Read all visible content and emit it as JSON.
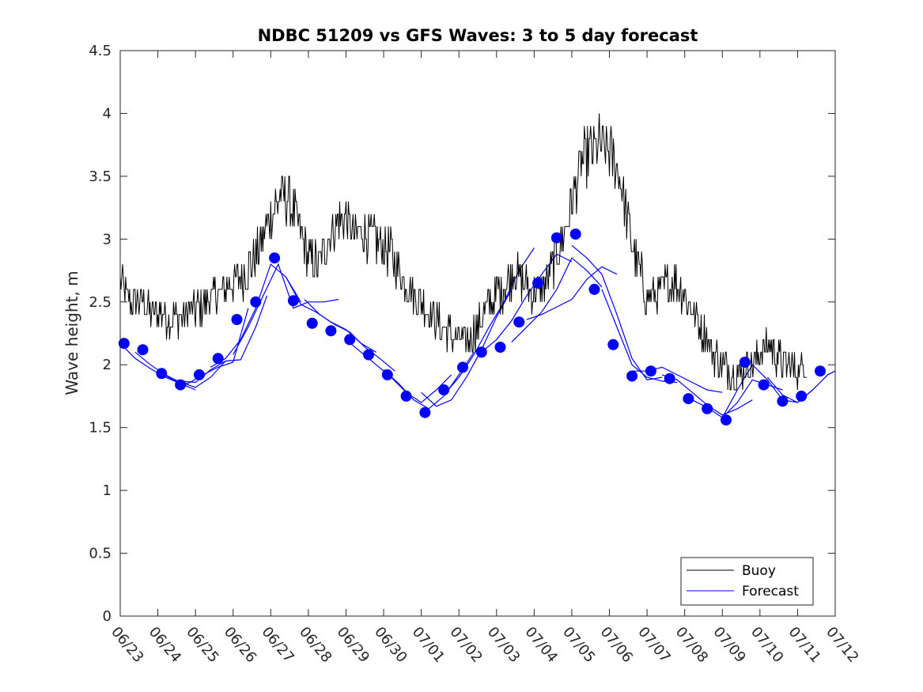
{
  "chart_data": {
    "type": "line",
    "title": "NDBC 51209 vs GFS Waves: 3 to 5 day forecast",
    "xlabel": "",
    "ylabel": "Wave height, m",
    "xlim": [
      0,
      19
    ],
    "ylim": [
      0,
      4.5
    ],
    "x_tick_labels": [
      "06/23",
      "06/24",
      "06/25",
      "06/26",
      "06/27",
      "06/28",
      "06/29",
      "06/30",
      "07/01",
      "07/02",
      "07/03",
      "07/04",
      "07/05",
      "07/06",
      "07/07",
      "07/08",
      "07/09",
      "07/10",
      "07/11",
      "07/12"
    ],
    "y_tick_labels": [
      "0",
      "0.5",
      "1",
      "1.5",
      "2",
      "2.5",
      "3",
      "3.5",
      "4",
      "4.5"
    ],
    "grid": false,
    "legend_position": "bottom-right",
    "x_units_note": "days after 06/23",
    "series": [
      {
        "name": "Buoy",
        "color": "#000000",
        "line_style": "solid",
        "x": [
          0,
          0.25,
          0.5,
          0.75,
          1,
          1.25,
          1.5,
          1.75,
          2,
          2.25,
          2.5,
          2.75,
          3,
          3.25,
          3.5,
          3.75,
          4,
          4.25,
          4.5,
          4.75,
          5,
          5.25,
          5.5,
          5.75,
          6,
          6.25,
          6.5,
          6.75,
          7,
          7.25,
          7.5,
          7.75,
          8,
          8.25,
          8.5,
          8.75,
          9,
          9.25,
          9.5,
          9.75,
          10,
          10.25,
          10.5,
          10.75,
          11,
          11.25,
          11.5,
          11.75,
          12,
          12.25,
          12.5,
          12.75,
          13,
          13.25,
          13.5,
          13.75,
          14,
          14.25,
          14.5,
          14.75,
          15,
          15.25,
          15.5,
          15.75,
          16,
          16.25,
          16.5,
          16.75,
          17,
          17.25,
          17.5,
          17.75,
          18,
          18.25
        ],
        "y": [
          2.65,
          2.5,
          2.5,
          2.45,
          2.4,
          2.4,
          2.35,
          2.4,
          2.45,
          2.5,
          2.55,
          2.6,
          2.65,
          2.7,
          2.8,
          2.95,
          3.2,
          3.35,
          3.3,
          3.1,
          2.85,
          2.8,
          3.0,
          3.15,
          3.15,
          3.05,
          3.05,
          3.0,
          2.95,
          2.85,
          2.7,
          2.6,
          2.5,
          2.4,
          2.3,
          2.25,
          2.2,
          2.2,
          2.3,
          2.45,
          2.55,
          2.65,
          2.75,
          2.65,
          2.55,
          2.6,
          2.8,
          3.0,
          3.3,
          3.6,
          3.7,
          3.75,
          3.7,
          3.55,
          3.1,
          2.8,
          2.55,
          2.55,
          2.65,
          2.65,
          2.55,
          2.4,
          2.25,
          2.1,
          2.0,
          1.95,
          1.95,
          2.0,
          2.1,
          2.15,
          2.05,
          2.0,
          1.95,
          2.0
        ]
      },
      {
        "name": "Forecast",
        "color": "#0000ff",
        "line_style": "solid",
        "marker": "filled-circle",
        "x": [
          0.1,
          0.6,
          1.1,
          1.6,
          2.1,
          2.6,
          3.1,
          3.6,
          4.1,
          4.6,
          5.1,
          5.6,
          6.1,
          6.6,
          7.1,
          7.6,
          8.1,
          8.6,
          9.1,
          9.6,
          10.1,
          10.6,
          11.1,
          11.6,
          12.1,
          12.6,
          13.1,
          13.6,
          14.1,
          14.6,
          15.1,
          15.6,
          16.1,
          16.6,
          17.1,
          17.6,
          18.1,
          18.6
        ],
        "y": [
          2.17,
          2.12,
          1.93,
          1.84,
          1.92,
          2.05,
          2.36,
          2.5,
          2.85,
          2.51,
          2.33,
          2.27,
          2.2,
          2.08,
          1.92,
          1.75,
          1.62,
          1.8,
          1.98,
          2.1,
          2.14,
          2.34,
          2.65,
          3.01,
          3.04,
          2.6,
          2.16,
          1.91,
          1.95,
          1.89,
          1.73,
          1.65,
          1.56,
          2.02,
          1.84,
          1.71,
          1.75,
          1.95
        ]
      }
    ],
    "forecast_runs": [
      {
        "x": [
          0,
          0.4,
          0.8,
          1.2,
          1.6,
          2.0
        ],
        "y": [
          2.17,
          2.05,
          1.97,
          1.9,
          1.85,
          1.8
        ]
      },
      {
        "x": [
          0.4,
          0.8,
          1.2,
          1.6,
          2.0,
          2.4,
          2.8
        ],
        "y": [
          2.1,
          2.0,
          1.92,
          1.86,
          1.82,
          1.9,
          2.03
        ]
      },
      {
        "x": [
          1.0,
          1.4,
          1.8,
          2.2,
          2.6,
          3.0,
          3.4
        ],
        "y": [
          1.95,
          1.88,
          1.85,
          1.92,
          1.98,
          2.02,
          2.45
        ]
      },
      {
        "x": [
          1.6,
          2.0,
          2.4,
          2.8,
          3.2,
          3.6,
          3.9
        ],
        "y": [
          1.87,
          1.86,
          1.96,
          2.03,
          2.04,
          2.3,
          2.55
        ]
      },
      {
        "x": [
          2.4,
          2.8,
          3.2,
          3.6,
          4.0,
          4.4,
          4.8
        ],
        "y": [
          1.98,
          2.05,
          2.2,
          2.45,
          2.8,
          2.7,
          2.5
        ]
      },
      {
        "x": [
          3.0,
          3.4,
          3.8,
          4.2,
          4.6,
          5.0,
          5.4,
          5.8
        ],
        "y": [
          2.08,
          2.3,
          2.55,
          2.8,
          2.45,
          2.5,
          2.5,
          2.52
        ]
      },
      {
        "x": [
          4.4,
          4.8,
          5.2,
          5.6,
          6.0,
          6.4,
          6.8
        ],
        "y": [
          2.7,
          2.48,
          2.42,
          2.34,
          2.28,
          2.17,
          2.1
        ]
      },
      {
        "x": [
          4.9,
          5.3,
          5.7,
          6.1,
          6.5,
          6.9,
          7.3
        ],
        "y": [
          2.52,
          2.4,
          2.32,
          2.26,
          2.14,
          2.05,
          1.95
        ]
      },
      {
        "x": [
          6.0,
          6.4,
          6.8,
          7.2,
          7.6,
          8.0,
          8.4,
          8.8
        ],
        "y": [
          2.2,
          2.1,
          2.0,
          1.9,
          1.78,
          1.7,
          1.8,
          1.92
        ]
      },
      {
        "x": [
          7.0,
          7.4,
          7.8,
          8.2,
          8.6,
          9.0,
          9.4
        ],
        "y": [
          1.96,
          1.85,
          1.72,
          1.65,
          1.75,
          1.92,
          2.1
        ]
      },
      {
        "x": [
          8.0,
          8.4,
          8.8,
          9.2,
          9.6,
          10.0,
          10.4
        ],
        "y": [
          1.78,
          1.67,
          1.72,
          1.9,
          2.12,
          2.38,
          2.6
        ]
      },
      {
        "x": [
          8.6,
          9.0,
          9.4,
          9.8,
          10.2,
          10.6,
          11.0
        ],
        "y": [
          1.76,
          1.9,
          2.08,
          2.3,
          2.5,
          2.75,
          2.93
        ]
      },
      {
        "x": [
          9.6,
          10.0,
          10.4,
          10.8,
          11.2,
          11.6,
          12.0
        ],
        "y": [
          2.1,
          2.2,
          2.35,
          2.55,
          2.72,
          2.88,
          2.82
        ]
      },
      {
        "x": [
          10.4,
          10.8,
          11.2,
          11.6,
          12.0,
          12.4,
          12.8
        ],
        "y": [
          2.18,
          2.3,
          2.42,
          2.6,
          2.85,
          2.75,
          2.62
        ]
      },
      {
        "x": [
          10.8,
          11.2,
          11.6,
          12.0,
          12.4,
          12.8,
          13.2
        ],
        "y": [
          2.36,
          2.4,
          2.46,
          2.52,
          2.68,
          2.78,
          2.72
        ]
      },
      {
        "x": [
          12.0,
          12.4,
          12.8,
          13.2,
          13.6,
          14.0,
          14.4
        ],
        "y": [
          2.95,
          2.85,
          2.72,
          2.4,
          2.05,
          1.88,
          1.9
        ]
      },
      {
        "x": [
          12.8,
          13.2,
          13.6,
          14.0,
          14.4,
          14.8
        ],
        "y": [
          2.6,
          2.3,
          2.0,
          1.9,
          1.87,
          1.86
        ]
      },
      {
        "x": [
          13.6,
          14.0,
          14.4,
          14.8,
          15.2,
          15.6,
          16.0
        ],
        "y": [
          1.95,
          1.95,
          1.98,
          1.92,
          1.86,
          1.8,
          1.78
        ]
      },
      {
        "x": [
          14.4,
          14.8,
          15.2,
          15.6,
          16.0,
          16.4,
          16.8
        ],
        "y": [
          1.92,
          1.88,
          1.78,
          1.68,
          1.6,
          1.65,
          1.72
        ]
      },
      {
        "x": [
          15.2,
          15.6,
          16.0,
          16.4,
          16.8,
          17.2,
          17.6
        ],
        "y": [
          1.72,
          1.66,
          1.58,
          1.7,
          1.88,
          1.84,
          1.8
        ]
      },
      {
        "x": [
          16.0,
          16.4,
          16.8,
          17.2,
          17.6,
          18.0,
          18.4
        ],
        "y": [
          1.58,
          1.8,
          2.0,
          1.88,
          1.72,
          1.7,
          1.8
        ]
      },
      {
        "x": [
          17.2,
          17.6,
          18.0,
          18.4,
          18.8,
          19.0
        ],
        "y": [
          1.9,
          1.76,
          1.7,
          1.8,
          1.92,
          1.95
        ]
      }
    ]
  },
  "legend": {
    "entries": [
      {
        "label": "Buoy",
        "color": "#000000"
      },
      {
        "label": "Forecast",
        "color": "#0000ff"
      }
    ]
  }
}
